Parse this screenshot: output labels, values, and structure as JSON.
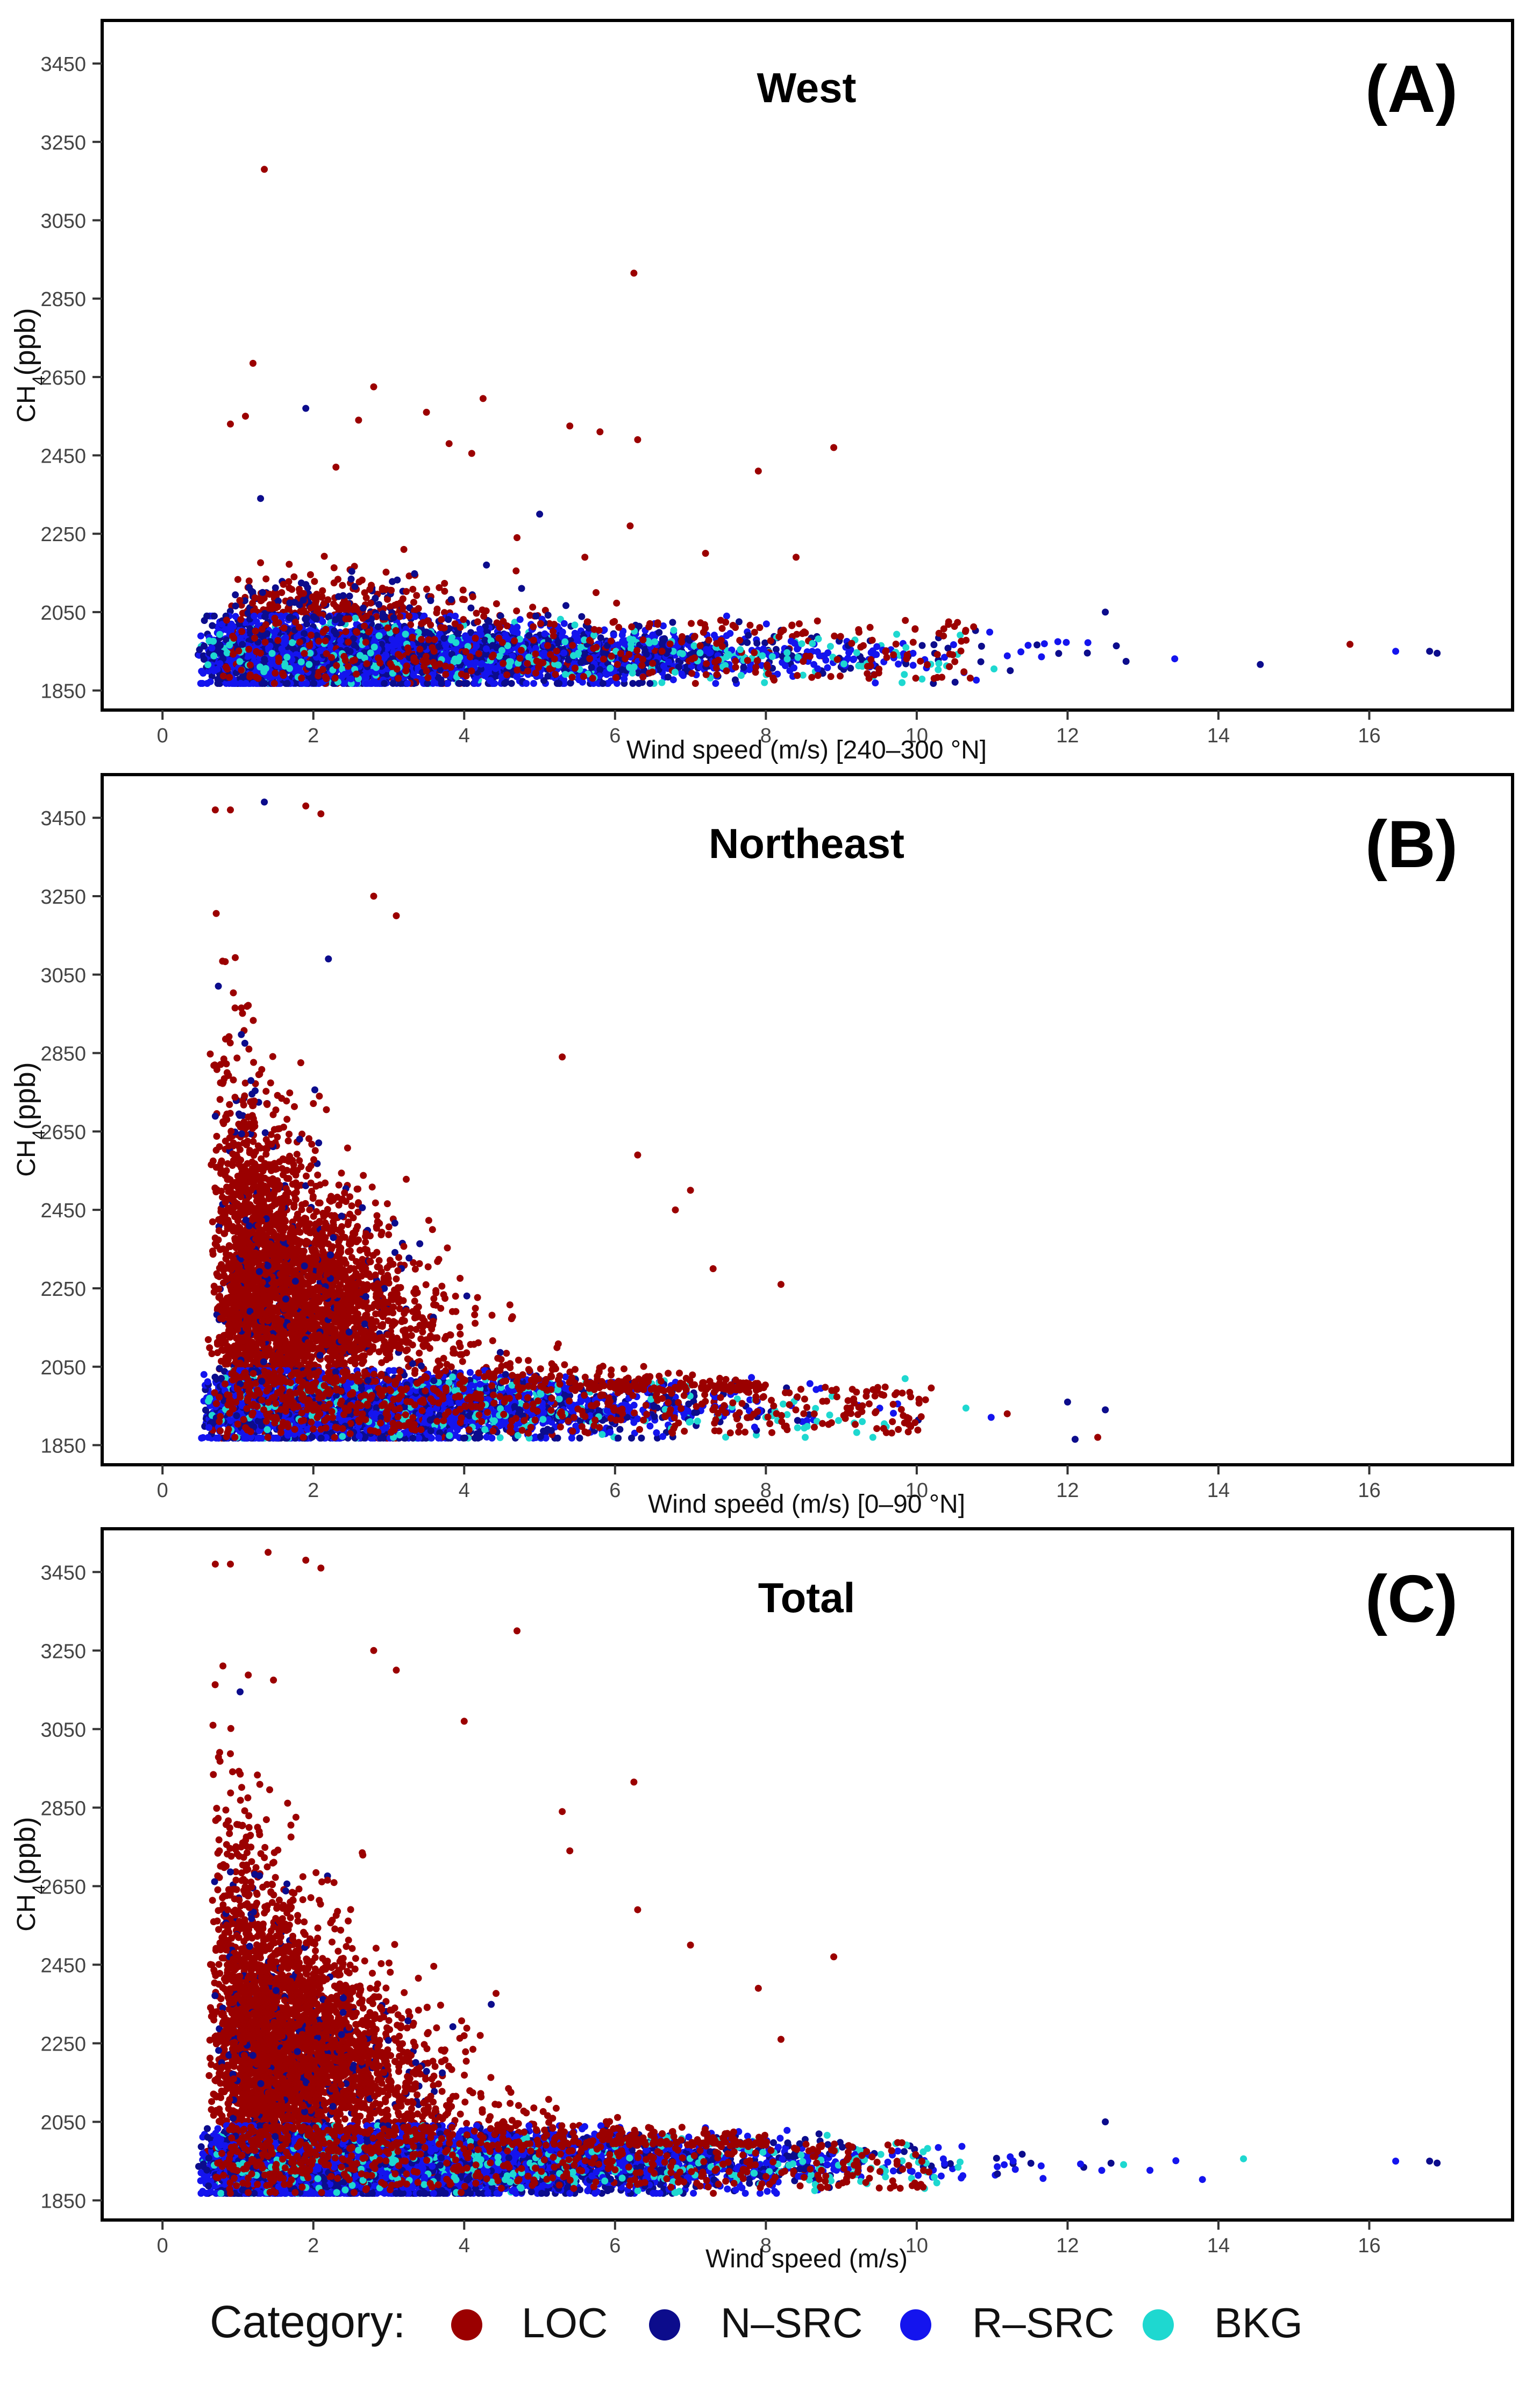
{
  "colors": {
    "LOC": "#9b0000",
    "N-SRC": "#0c0c8c",
    "R-SRC": "#1414ee",
    "BKG": "#1ed8d0"
  },
  "legend": {
    "title": "Category:",
    "items": [
      {
        "key": "LOC",
        "label": "LOC"
      },
      {
        "key": "N-SRC",
        "label": "N–SRC"
      },
      {
        "key": "R-SRC",
        "label": "R–SRC"
      },
      {
        "key": "BKG",
        "label": "BKG"
      }
    ]
  },
  "chart_data": [
    {
      "type": "scatter",
      "panel_label": "(A)",
      "title": "West",
      "xlabel": "Wind speed (m/s) [240–300 °N]",
      "ylabel": "CH4(ppb)",
      "xlim": [
        -0.8,
        17.9
      ],
      "ylim": [
        1800,
        3560
      ],
      "xticks": [
        0,
        2,
        4,
        6,
        8,
        10,
        12,
        14,
        16
      ],
      "yticks": [
        1850,
        2050,
        2250,
        2450,
        2650,
        2850,
        3050,
        3250,
        3450
      ],
      "grid": false,
      "outliers": [
        {
          "x": 1.35,
          "y": 3180,
          "category": "LOC"
        },
        {
          "x": 6.25,
          "y": 2915,
          "category": "LOC"
        },
        {
          "x": 1.2,
          "y": 2685,
          "category": "LOC"
        },
        {
          "x": 2.8,
          "y": 2625,
          "category": "LOC"
        },
        {
          "x": 4.25,
          "y": 2595,
          "category": "LOC"
        },
        {
          "x": 1.9,
          "y": 2570,
          "category": "N-SRC"
        },
        {
          "x": 3.5,
          "y": 2560,
          "category": "LOC"
        },
        {
          "x": 1.1,
          "y": 2550,
          "category": "LOC"
        },
        {
          "x": 2.6,
          "y": 2540,
          "category": "LOC"
        },
        {
          "x": 0.9,
          "y": 2530,
          "category": "LOC"
        },
        {
          "x": 5.4,
          "y": 2525,
          "category": "LOC"
        },
        {
          "x": 5.8,
          "y": 2510,
          "category": "LOC"
        },
        {
          "x": 6.3,
          "y": 2490,
          "category": "LOC"
        },
        {
          "x": 3.8,
          "y": 2480,
          "category": "LOC"
        },
        {
          "x": 8.9,
          "y": 2470,
          "category": "LOC"
        },
        {
          "x": 4.1,
          "y": 2455,
          "category": "LOC"
        },
        {
          "x": 7.9,
          "y": 2410,
          "category": "LOC"
        },
        {
          "x": 2.3,
          "y": 2420,
          "category": "LOC"
        },
        {
          "x": 1.3,
          "y": 2340,
          "category": "N-SRC"
        },
        {
          "x": 5.0,
          "y": 2300,
          "category": "N-SRC"
        },
        {
          "x": 6.2,
          "y": 2270,
          "category": "LOC"
        },
        {
          "x": 4.7,
          "y": 2240,
          "category": "LOC"
        },
        {
          "x": 8.4,
          "y": 2190,
          "category": "LOC"
        },
        {
          "x": 7.2,
          "y": 2200,
          "category": "LOC"
        },
        {
          "x": 3.2,
          "y": 2210,
          "category": "LOC"
        },
        {
          "x": 5.6,
          "y": 2190,
          "category": "LOC"
        },
        {
          "x": 12.5,
          "y": 2050,
          "category": "N-SRC"
        },
        {
          "x": 16.35,
          "y": 1950,
          "category": "R-SRC"
        },
        {
          "x": 16.8,
          "y": 1950,
          "category": "N-SRC"
        },
        {
          "x": 16.9,
          "y": 1945,
          "category": "N-SRC"
        }
      ]
    },
    {
      "type": "scatter",
      "panel_label": "(B)",
      "title": "Northeast",
      "xlabel": "Wind speed (m/s) [0–90 °N]",
      "ylabel": "CH4(ppb)",
      "xlim": [
        -0.8,
        17.9
      ],
      "ylim": [
        1800,
        3560
      ],
      "xticks": [
        0,
        2,
        4,
        6,
        8,
        10,
        12,
        14,
        16
      ],
      "yticks": [
        1850,
        2050,
        2250,
        2450,
        2650,
        2850,
        3050,
        3250,
        3450
      ],
      "grid": false,
      "outliers": [
        {
          "x": 1.35,
          "y": 3490,
          "category": "N-SRC"
        },
        {
          "x": 0.7,
          "y": 3470,
          "category": "LOC"
        },
        {
          "x": 0.9,
          "y": 3470,
          "category": "LOC"
        },
        {
          "x": 1.9,
          "y": 3480,
          "category": "LOC"
        },
        {
          "x": 2.1,
          "y": 3460,
          "category": "LOC"
        },
        {
          "x": 2.8,
          "y": 3250,
          "category": "LOC"
        },
        {
          "x": 3.1,
          "y": 3200,
          "category": "LOC"
        },
        {
          "x": 2.2,
          "y": 3090,
          "category": "N-SRC"
        },
        {
          "x": 5.3,
          "y": 2840,
          "category": "LOC"
        },
        {
          "x": 6.3,
          "y": 2590,
          "category": "LOC"
        },
        {
          "x": 7.0,
          "y": 2500,
          "category": "LOC"
        },
        {
          "x": 6.8,
          "y": 2450,
          "category": "LOC"
        },
        {
          "x": 7.3,
          "y": 2300,
          "category": "LOC"
        },
        {
          "x": 8.2,
          "y": 2260,
          "category": "LOC"
        },
        {
          "x": 11.2,
          "y": 1930,
          "category": "LOC"
        },
        {
          "x": 12.0,
          "y": 1960,
          "category": "N-SRC"
        },
        {
          "x": 12.5,
          "y": 1940,
          "category": "N-SRC"
        },
        {
          "x": 12.4,
          "y": 1870,
          "category": "LOC"
        },
        {
          "x": 12.1,
          "y": 1865,
          "category": "N-SRC"
        }
      ]
    },
    {
      "type": "scatter",
      "panel_label": "(C)",
      "title": "Total",
      "xlabel": "Wind speed (m/s)",
      "ylabel": "CH4(ppb)",
      "xlim": [
        -0.8,
        17.9
      ],
      "ylim": [
        1800,
        3560
      ],
      "xticks": [
        0,
        2,
        4,
        6,
        8,
        10,
        12,
        14,
        16
      ],
      "yticks": [
        1850,
        2050,
        2250,
        2450,
        2650,
        2850,
        3050,
        3250,
        3450
      ],
      "grid": false,
      "outliers": [
        {
          "x": 1.4,
          "y": 3500,
          "category": "LOC"
        },
        {
          "x": 0.7,
          "y": 3470,
          "category": "LOC"
        },
        {
          "x": 0.9,
          "y": 3470,
          "category": "LOC"
        },
        {
          "x": 1.9,
          "y": 3480,
          "category": "LOC"
        },
        {
          "x": 2.1,
          "y": 3460,
          "category": "LOC"
        },
        {
          "x": 4.7,
          "y": 3300,
          "category": "LOC"
        },
        {
          "x": 2.8,
          "y": 3250,
          "category": "LOC"
        },
        {
          "x": 3.1,
          "y": 3200,
          "category": "LOC"
        },
        {
          "x": 4.0,
          "y": 3070,
          "category": "LOC"
        },
        {
          "x": 6.25,
          "y": 2915,
          "category": "LOC"
        },
        {
          "x": 5.3,
          "y": 2840,
          "category": "LOC"
        },
        {
          "x": 5.4,
          "y": 2740,
          "category": "LOC"
        },
        {
          "x": 6.3,
          "y": 2590,
          "category": "LOC"
        },
        {
          "x": 7.0,
          "y": 2500,
          "category": "LOC"
        },
        {
          "x": 8.9,
          "y": 2470,
          "category": "LOC"
        },
        {
          "x": 7.9,
          "y": 2390,
          "category": "LOC"
        },
        {
          "x": 8.2,
          "y": 2260,
          "category": "LOC"
        },
        {
          "x": 12.5,
          "y": 2050,
          "category": "N-SRC"
        },
        {
          "x": 16.35,
          "y": 1950,
          "category": "R-SRC"
        },
        {
          "x": 16.8,
          "y": 1950,
          "category": "N-SRC"
        },
        {
          "x": 16.9,
          "y": 1945,
          "category": "N-SRC"
        }
      ]
    }
  ]
}
